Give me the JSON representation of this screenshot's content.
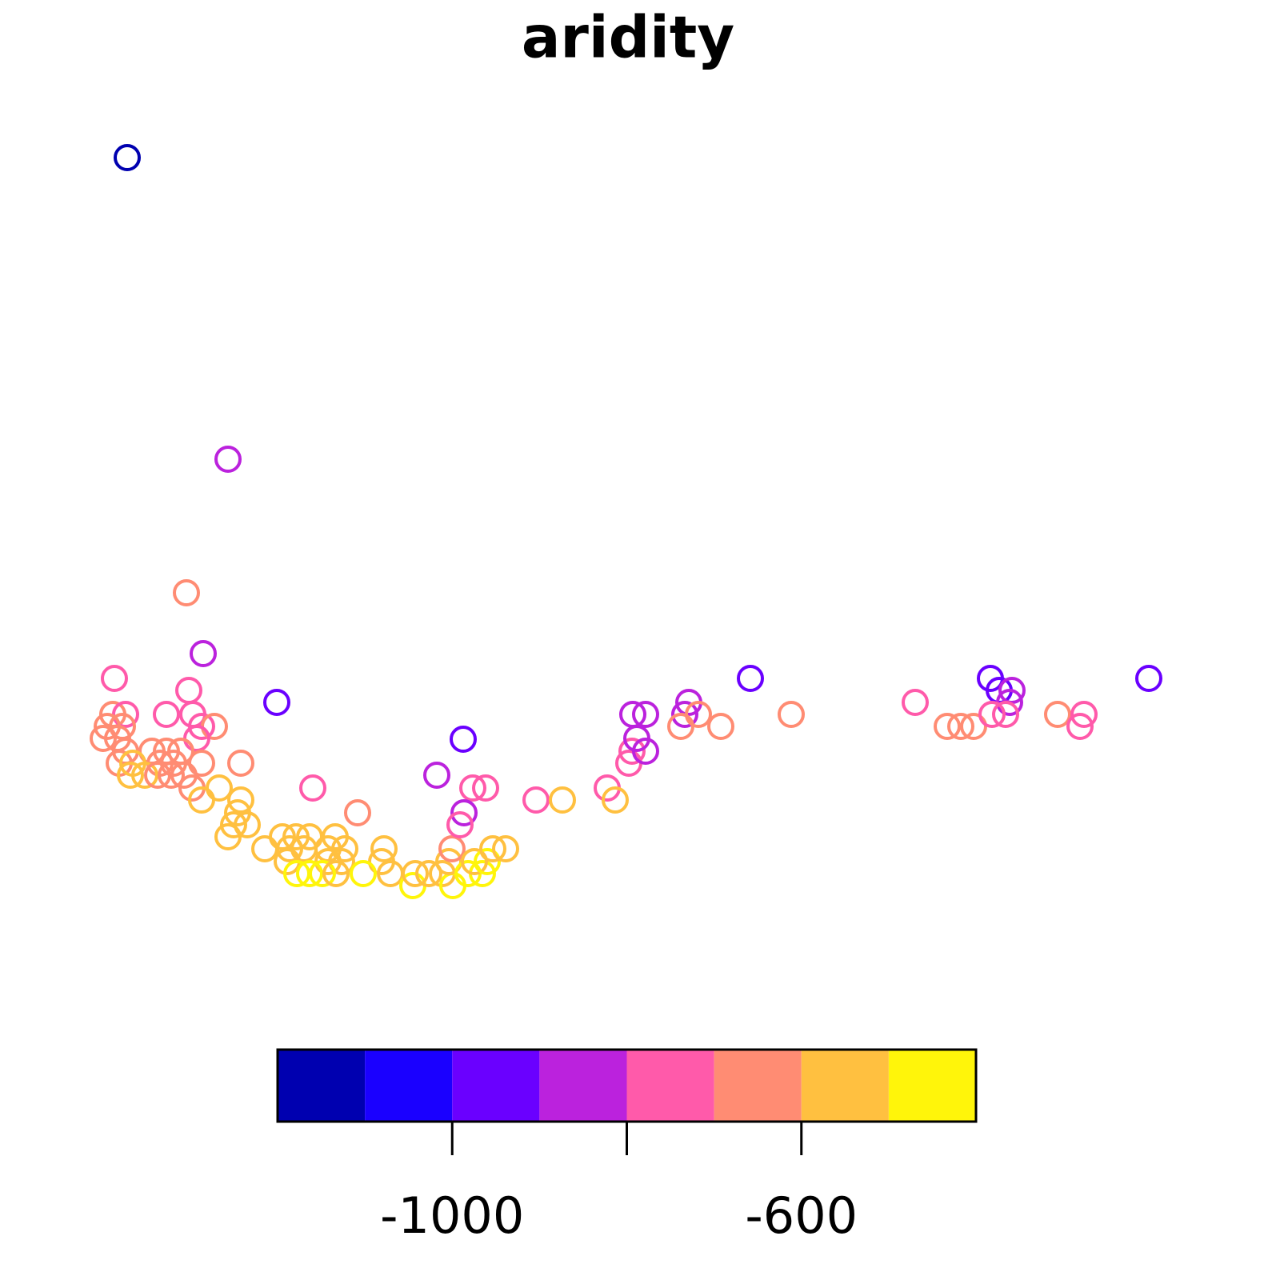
{
  "chart_data": {
    "type": "scatter",
    "title": "aridity",
    "xlim": [
      0,
      1400
    ],
    "ylim": [
      0,
      1100
    ],
    "x": [
      59,
      185,
      133,
      154,
      43,
      136,
      246,
      41,
      57,
      108,
      141,
      34,
      53,
      152,
      168,
      29,
      47,
      146,
      57,
      90,
      108,
      126,
      49,
      66,
      100,
      117,
      152,
      201,
      63,
      81,
      97,
      114,
      130,
      140,
      174,
      291,
      152,
      201,
      197,
      347,
      192,
      209,
      185,
      253,
      270,
      287,
      319,
      231,
      262,
      280,
      310,
      331,
      380,
      259,
      310,
      327,
      377,
      271,
      287,
      303,
      320,
      354,
      388,
      416,
      419,
      436,
      453,
      466,
      461,
      465,
      485,
      503,
      493,
      509,
      516,
      532,
      479,
      446,
      491,
      507,
      480,
      475,
      570,
      603,
      659,
      669,
      686,
      690,
      707,
      696,
      691,
      707,
      761,
      756,
      773,
      751,
      801,
      838,
      889,
      1044,
      1084,
      1101,
      1117,
      1138,
      1149,
      1165,
      1162,
      1140,
      1157,
      1222,
      1255,
      1250,
      1336
    ],
    "y": [
      1053,
      676,
      509,
      433,
      402,
      387,
      372,
      357,
      357,
      357,
      357,
      342,
      342,
      342,
      342,
      327,
      327,
      327,
      311,
      311,
      311,
      311,
      296,
      296,
      296,
      296,
      296,
      296,
      281,
      281,
      281,
      281,
      281,
      265,
      265,
      265,
      250,
      250,
      234,
      234,
      219,
      219,
      204,
      204,
      204,
      204,
      204,
      189,
      189,
      189,
      189,
      189,
      189,
      173,
      173,
      173,
      173,
      158,
      158,
      158,
      158,
      158,
      158,
      143,
      158,
      158,
      158,
      143,
      173,
      189,
      158,
      158,
      173,
      173,
      189,
      189,
      326,
      281,
      265,
      265,
      234,
      219,
      250,
      250,
      265,
      250,
      296,
      311,
      311,
      327,
      357,
      357,
      372,
      357,
      357,
      342,
      342,
      402,
      357,
      372,
      342,
      342,
      342,
      402,
      387,
      387,
      372,
      357,
      357,
      357,
      357,
      342,
      402
    ],
    "color_values": [
      -1150,
      -850,
      -650,
      -850,
      -750,
      -750,
      -950,
      -650,
      -750,
      -750,
      -750,
      -650,
      -650,
      -750,
      -650,
      -650,
      -650,
      -750,
      -650,
      -650,
      -650,
      -650,
      -650,
      -550,
      -650,
      -650,
      -650,
      -650,
      -550,
      -550,
      -650,
      -650,
      -650,
      -650,
      -550,
      -750,
      -550,
      -550,
      -550,
      -650,
      -550,
      -550,
      -550,
      -550,
      -550,
      -550,
      -550,
      -550,
      -550,
      -550,
      -550,
      -550,
      -550,
      -550,
      -550,
      -550,
      -550,
      -450,
      -450,
      -450,
      -550,
      -450,
      -550,
      -450,
      -550,
      -550,
      -550,
      -450,
      -550,
      -650,
      -450,
      -450,
      -550,
      -450,
      -550,
      -550,
      -950,
      -850,
      -750,
      -750,
      -850,
      -750,
      -750,
      -550,
      -750,
      -550,
      -750,
      -750,
      -850,
      -850,
      -850,
      -850,
      -850,
      -850,
      -650,
      -650,
      -650,
      -950,
      -650,
      -750,
      -650,
      -650,
      -650,
      -950,
      -950,
      -850,
      -850,
      -750,
      -750,
      -650,
      -750,
      -750,
      -950
    ],
    "colorbar": {
      "breaks": [
        -1200,
        -1100,
        -1000,
        -900,
        -800,
        -700,
        -600,
        -500,
        -400
      ],
      "colors": [
        "#0000b0",
        "#1a00ff",
        "#6a00ff",
        "#bb22dd",
        "#ff5aaa",
        "#ff8c73",
        "#ffc040",
        "#fff50a"
      ],
      "ticks": [
        -1000,
        {
          "value": -800,
          "label": null
        },
        -600
      ]
    }
  }
}
